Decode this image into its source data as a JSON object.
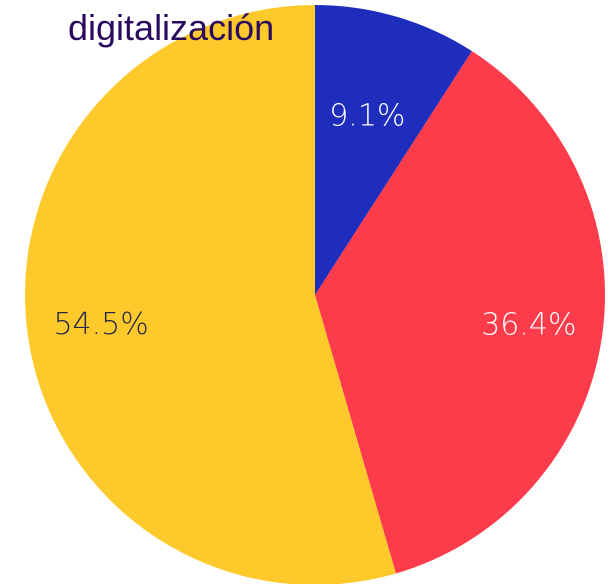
{
  "chart_data": {
    "type": "pie",
    "title": "digitalización",
    "values": [
      9.1,
      36.4,
      54.5
    ],
    "value_labels": [
      "9.1%",
      "36.4%",
      "54.5%"
    ],
    "colors": [
      "#1f2dbd",
      "#fc3b4b",
      "#fdc92b"
    ],
    "label_colors": [
      "#ffffff",
      "#ffffff",
      "#26264a"
    ],
    "start_angle": 0,
    "direction": "clockwise"
  }
}
